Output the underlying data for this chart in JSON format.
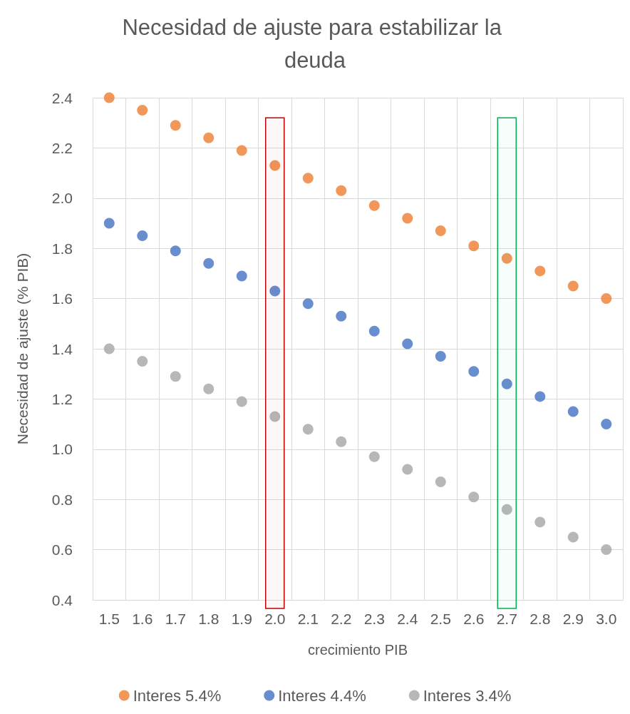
{
  "chart_data": {
    "type": "scatter",
    "title": "Necesidad de ajuste para estabilizar la deuda",
    "xlabel": "crecimiento PIB",
    "ylabel": "Necesidad de ajuste (% PIB)",
    "categories": [
      "1.5",
      "1.6",
      "1.7",
      "1.8",
      "1.9",
      "2.0",
      "2.1",
      "2.2",
      "2.3",
      "2.4",
      "2.5",
      "2.6",
      "2.7",
      "2.8",
      "2.9",
      "3.0"
    ],
    "series": [
      {
        "name": "Interes 5.4%",
        "color": "#ed7d31",
        "values": [
          2.4,
          2.35,
          2.29,
          2.24,
          2.19,
          2.13,
          2.08,
          2.03,
          1.97,
          1.92,
          1.87,
          1.81,
          1.76,
          1.71,
          1.65,
          1.6
        ]
      },
      {
        "name": "Interes 4.4%",
        "color": "#4472c4",
        "values": [
          1.9,
          1.85,
          1.79,
          1.74,
          1.69,
          1.63,
          1.58,
          1.53,
          1.47,
          1.42,
          1.37,
          1.31,
          1.26,
          1.21,
          1.15,
          1.1
        ]
      },
      {
        "name": "Interes 3.4%",
        "color": "#a5a5a5",
        "values": [
          1.4,
          1.35,
          1.29,
          1.24,
          1.19,
          1.13,
          1.08,
          1.03,
          0.97,
          0.92,
          0.87,
          0.81,
          0.76,
          0.71,
          0.65,
          0.6
        ]
      }
    ],
    "bands": [
      {
        "axis": "x",
        "from": "2.0",
        "to": "2.0",
        "color": "#c00000"
      },
      {
        "axis": "x",
        "from": "2.7",
        "to": "2.7",
        "color": "#00b050"
      }
    ],
    "ylim": [
      0.4,
      2.4
    ],
    "yticks": [
      0.4,
      0.6,
      0.8,
      {
        "value": 1,
        "label": "1.0"
      },
      1.2,
      1.4,
      1.6,
      1.8,
      {
        "value": 2,
        "label": "2.0"
      },
      2.2,
      2.4
    ],
    "grid": true,
    "legend": "bottom",
    "marker": "circle"
  }
}
